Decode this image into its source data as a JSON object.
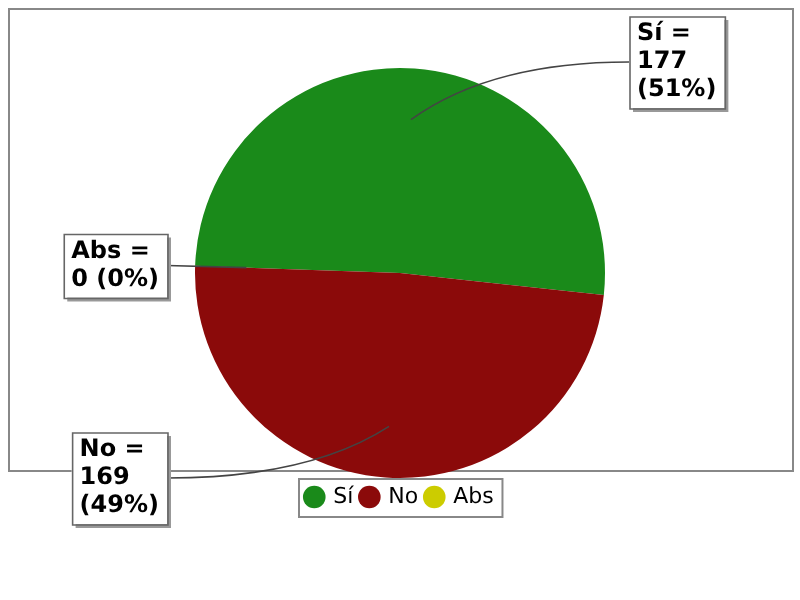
{
  "chart_data": {
    "type": "pie",
    "categories": [
      "Sí",
      "No",
      "Abs"
    ],
    "values": [
      177,
      169,
      0
    ],
    "colors": [
      "#1a8a1a",
      "#8b0a0a",
      "#cccc00"
    ],
    "value_labels": [
      "Sí =\n177\n(51%)",
      "No =\n169\n(49%)",
      "Abs =\n0 (0%)"
    ],
    "legend": "bottom"
  }
}
